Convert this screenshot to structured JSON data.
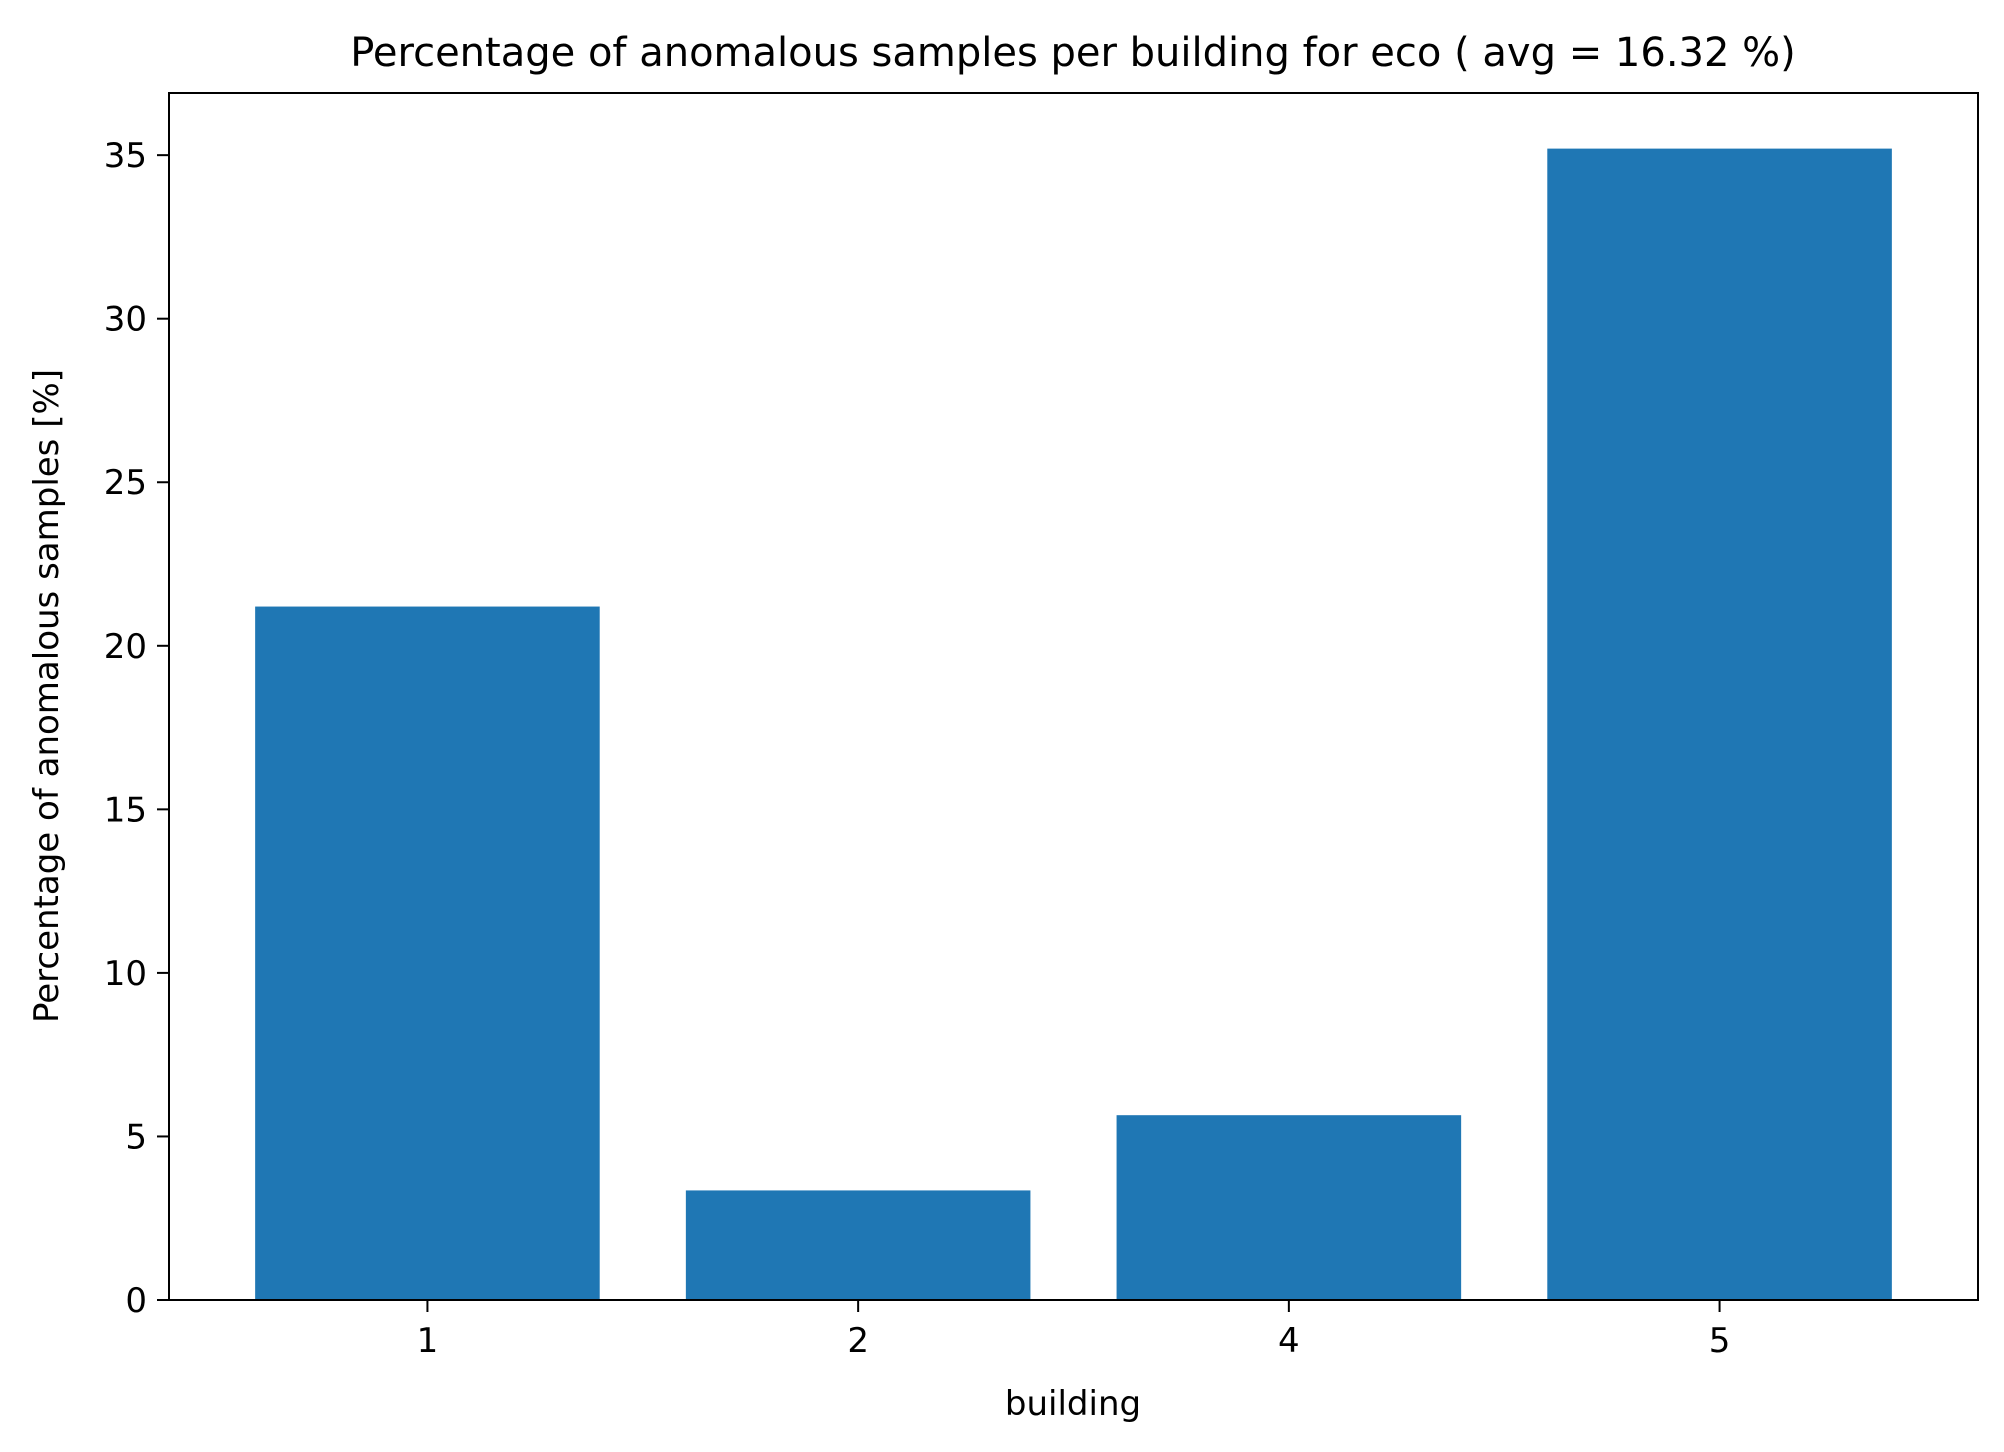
{
  "chart_data": {
    "type": "bar",
    "title": "Percentage of anomalous samples per building for eco ( avg = 16.32 %)",
    "xlabel": "building",
    "ylabel": "Percentage of anomalous samples [%]",
    "categories": [
      "1",
      "2",
      "4",
      "5"
    ],
    "values": [
      21.2,
      3.35,
      5.65,
      35.2
    ],
    "ylim": [
      0,
      36.9
    ],
    "yticks": [
      0,
      5,
      10,
      15,
      20,
      25,
      30,
      35
    ],
    "bar_color": "#1f77b4",
    "grid": false,
    "legend": "none"
  }
}
